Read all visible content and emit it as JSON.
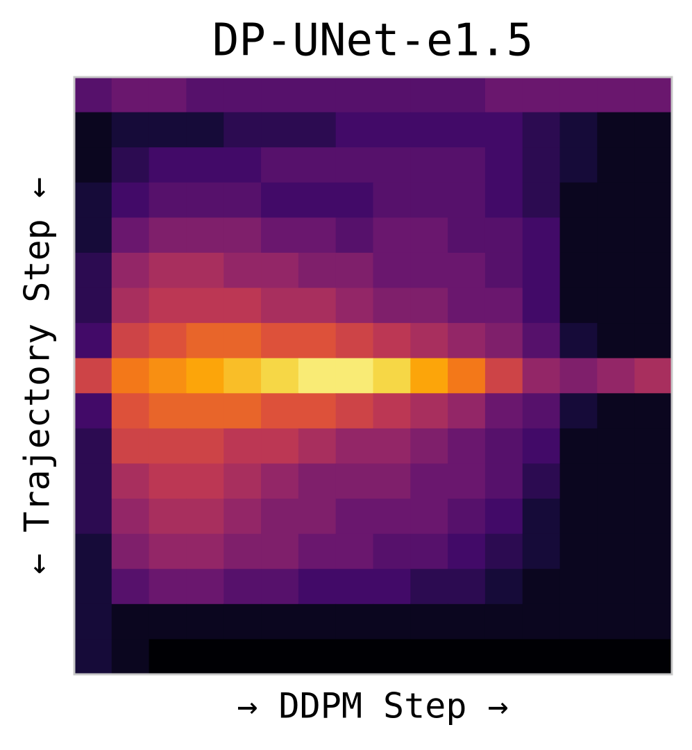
{
  "chart_data": {
    "type": "heatmap",
    "title": "DP-UNet-e1.5",
    "x_label": "→ DDPM Step →",
    "y_label": "← Trajectory Step ←",
    "colormap": "inferno",
    "values": [
      [
        0.25,
        0.3,
        0.3,
        0.25,
        0.25,
        0.25,
        0.25,
        0.25,
        0.25,
        0.25,
        0.25,
        0.3,
        0.3,
        0.3,
        0.3,
        0.3
      ],
      [
        0.05,
        0.1,
        0.1,
        0.1,
        0.15,
        0.15,
        0.15,
        0.2,
        0.2,
        0.2,
        0.2,
        0.2,
        0.15,
        0.1,
        0.05,
        0.05
      ],
      [
        0.05,
        0.15,
        0.2,
        0.2,
        0.2,
        0.25,
        0.25,
        0.25,
        0.25,
        0.25,
        0.25,
        0.2,
        0.15,
        0.1,
        0.05,
        0.05
      ],
      [
        0.1,
        0.2,
        0.25,
        0.25,
        0.25,
        0.2,
        0.2,
        0.2,
        0.25,
        0.25,
        0.25,
        0.2,
        0.15,
        0.05,
        0.05,
        0.05
      ],
      [
        0.1,
        0.3,
        0.35,
        0.35,
        0.35,
        0.3,
        0.3,
        0.25,
        0.3,
        0.3,
        0.25,
        0.25,
        0.2,
        0.05,
        0.05,
        0.05
      ],
      [
        0.15,
        0.4,
        0.45,
        0.45,
        0.4,
        0.4,
        0.35,
        0.35,
        0.3,
        0.3,
        0.3,
        0.25,
        0.2,
        0.05,
        0.05,
        0.05
      ],
      [
        0.15,
        0.45,
        0.5,
        0.5,
        0.5,
        0.45,
        0.45,
        0.4,
        0.35,
        0.35,
        0.3,
        0.3,
        0.2,
        0.05,
        0.05,
        0.05
      ],
      [
        0.2,
        0.55,
        0.6,
        0.65,
        0.65,
        0.6,
        0.6,
        0.55,
        0.5,
        0.45,
        0.4,
        0.35,
        0.25,
        0.1,
        0.05,
        0.05
      ],
      [
        0.55,
        0.7,
        0.75,
        0.8,
        0.85,
        0.9,
        0.95,
        0.95,
        0.9,
        0.8,
        0.7,
        0.55,
        0.4,
        0.35,
        0.4,
        0.45
      ],
      [
        0.2,
        0.6,
        0.65,
        0.65,
        0.65,
        0.6,
        0.6,
        0.55,
        0.5,
        0.45,
        0.4,
        0.3,
        0.25,
        0.1,
        0.05,
        0.05
      ],
      [
        0.15,
        0.55,
        0.55,
        0.55,
        0.5,
        0.5,
        0.45,
        0.4,
        0.4,
        0.35,
        0.3,
        0.25,
        0.2,
        0.05,
        0.05,
        0.05
      ],
      [
        0.15,
        0.45,
        0.5,
        0.5,
        0.45,
        0.4,
        0.35,
        0.35,
        0.35,
        0.3,
        0.3,
        0.25,
        0.15,
        0.05,
        0.05,
        0.05
      ],
      [
        0.15,
        0.4,
        0.45,
        0.45,
        0.4,
        0.35,
        0.35,
        0.3,
        0.3,
        0.3,
        0.25,
        0.2,
        0.1,
        0.05,
        0.05,
        0.05
      ],
      [
        0.1,
        0.35,
        0.4,
        0.4,
        0.35,
        0.35,
        0.3,
        0.3,
        0.25,
        0.25,
        0.2,
        0.15,
        0.1,
        0.05,
        0.05,
        0.05
      ],
      [
        0.1,
        0.25,
        0.3,
        0.3,
        0.25,
        0.25,
        0.2,
        0.2,
        0.2,
        0.15,
        0.15,
        0.1,
        0.05,
        0.05,
        0.05,
        0.05
      ],
      [
        0.1,
        0.05,
        0.05,
        0.05,
        0.05,
        0.05,
        0.05,
        0.05,
        0.05,
        0.05,
        0.05,
        0.05,
        0.05,
        0.05,
        0.05,
        0.05
      ],
      [
        0.1,
        0.05,
        0,
        0,
        0,
        0,
        0,
        0,
        0,
        0,
        0,
        0,
        0,
        0,
        0,
        0
      ]
    ]
  }
}
